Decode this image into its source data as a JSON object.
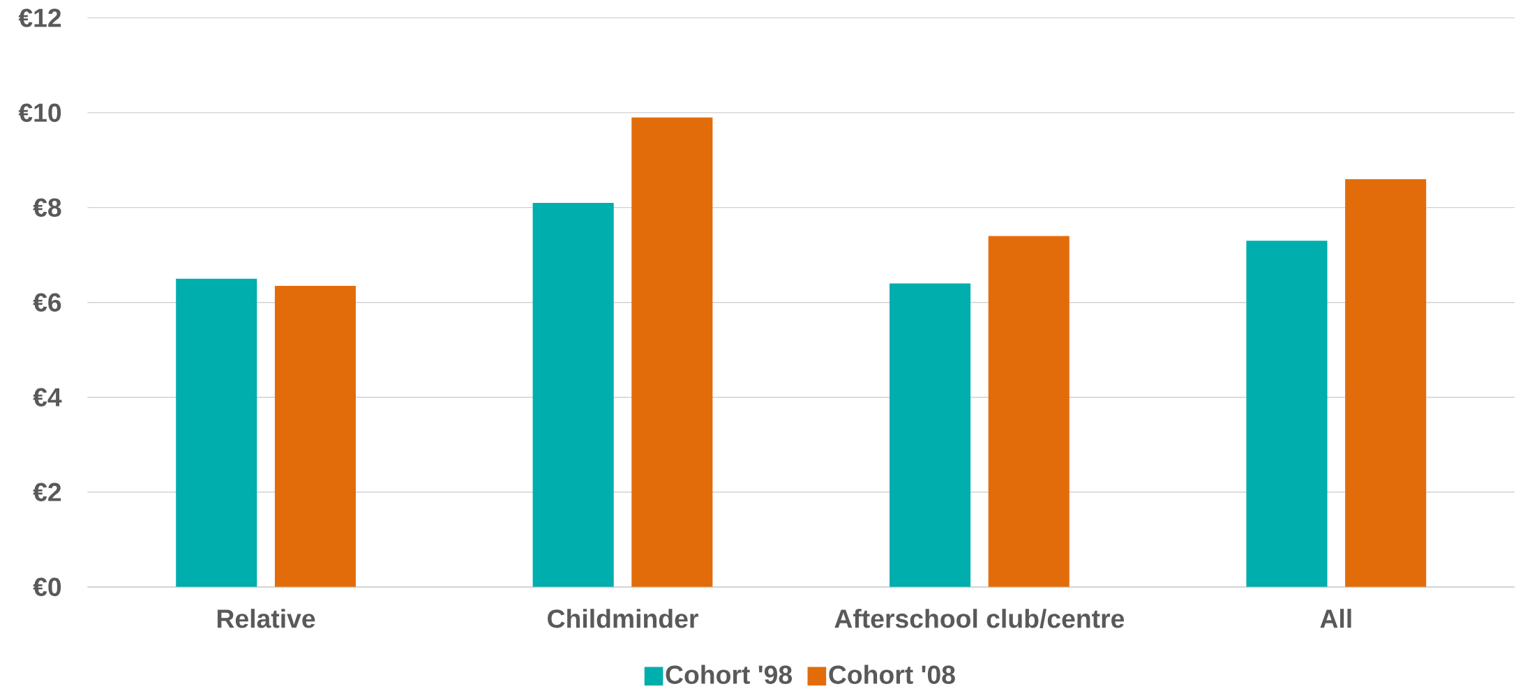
{
  "chart_data": {
    "type": "bar",
    "categories": [
      "Relative",
      "Childminder",
      "Afterschool club/centre",
      "All"
    ],
    "series": [
      {
        "name": "Cohort '98",
        "color": "#00aead",
        "values": [
          6.5,
          8.1,
          6.4,
          7.3
        ]
      },
      {
        "name": "Cohort '08",
        "color": "#e36c0a",
        "values": [
          6.35,
          9.9,
          7.4,
          8.6
        ]
      }
    ],
    "ylim": [
      0,
      12
    ],
    "yticks": [
      {
        "value": 0,
        "label": "€0"
      },
      {
        "value": 2,
        "label": "€2"
      },
      {
        "value": 4,
        "label": "€4"
      },
      {
        "value": 6,
        "label": "€6"
      },
      {
        "value": 8,
        "label": "€8"
      },
      {
        "value": 10,
        "label": "€10"
      },
      {
        "value": 12,
        "label": "€12"
      }
    ],
    "grid": "y",
    "legend": "bottom"
  }
}
